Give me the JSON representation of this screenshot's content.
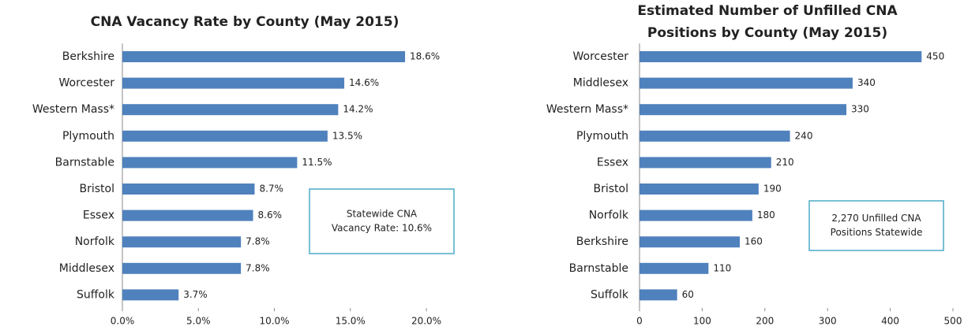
{
  "chart_data": [
    {
      "type": "bar",
      "orientation": "horizontal",
      "title": [
        "CNA Vacancy Rate by County (May 2015)"
      ],
      "categories": [
        "Berkshire",
        "Worcester",
        "Western Mass*",
        "Plymouth",
        "Barnstable",
        "Bristol",
        "Essex",
        "Norfolk",
        "Middlesex",
        "Suffolk"
      ],
      "values": [
        18.6,
        14.6,
        14.2,
        13.5,
        11.5,
        8.7,
        8.6,
        7.8,
        7.8,
        3.7
      ],
      "value_labels": [
        "18.6%",
        "14.6%",
        "14.2%",
        "13.5%",
        "11.5%",
        "8.7%",
        "8.6%",
        "7.8%",
        "7.8%",
        "3.7%"
      ],
      "color": "#4f81bd",
      "xlim": [
        0,
        20
      ],
      "xticks": [
        {
          "value": 0,
          "label": "0.0%"
        },
        {
          "value": 5,
          "label": "5.0%"
        },
        {
          "value": 10,
          "label": "10.0%"
        },
        {
          "value": 15,
          "label": "15.0%"
        },
        {
          "value": 20,
          "label": "20.0%"
        }
      ],
      "annotation": [
        "Statewide CNA",
        "Vacancy Rate:  10.6%"
      ]
    },
    {
      "type": "bar",
      "orientation": "horizontal",
      "title": [
        "Estimated Number of Unfilled CNA",
        "Positions by County (May 2015)"
      ],
      "categories": [
        "Worcester",
        "Middlesex",
        "Western Mass*",
        "Plymouth",
        "Essex",
        "Bristol",
        "Norfolk",
        "Berkshire",
        "Barnstable",
        "Suffolk"
      ],
      "values": [
        450,
        340,
        330,
        240,
        210,
        190,
        180,
        160,
        110,
        60
      ],
      "color": "#4f81bd",
      "xlim": [
        0,
        500
      ],
      "xticks": [
        0,
        100,
        200,
        300,
        400,
        500
      ],
      "annotation": [
        "2,270 Unfilled CNA",
        "Positions Statewide"
      ]
    }
  ]
}
